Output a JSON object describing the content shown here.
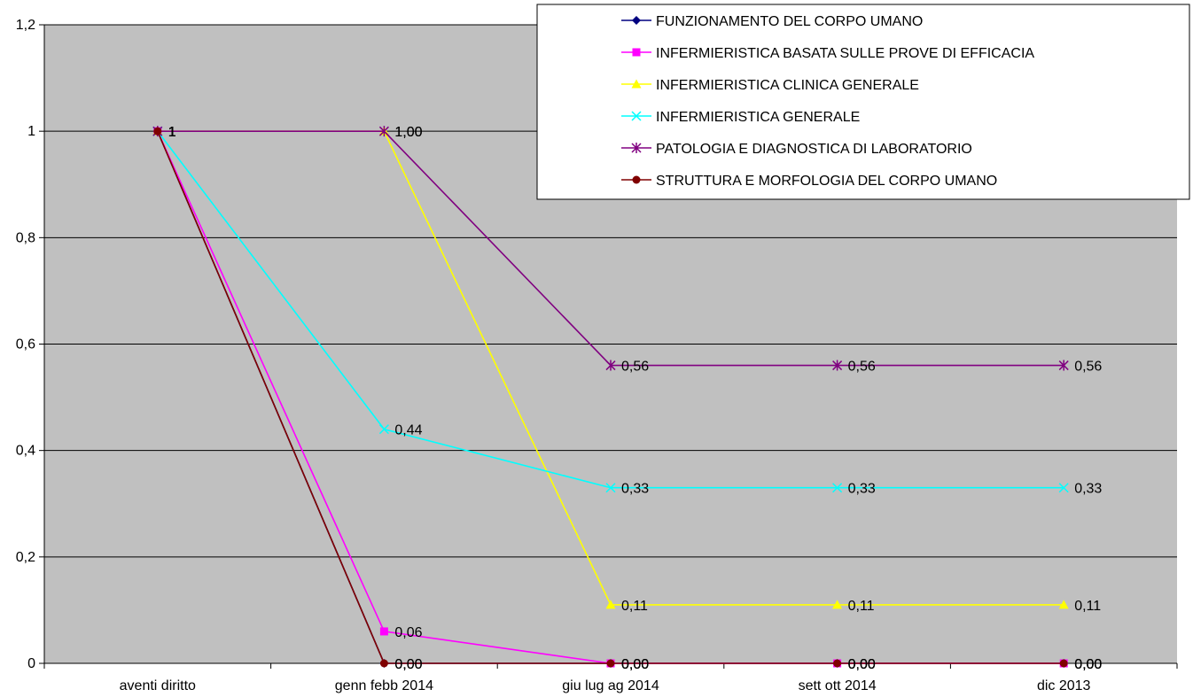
{
  "colors": {
    "plot_background": "#c0c0c0",
    "gridline": "#000000",
    "legend_background": "#ffffff"
  },
  "chart_data": {
    "type": "line",
    "title": "",
    "xlabel": "",
    "ylabel": "",
    "categories": [
      "aventi diritto",
      "genn febb 2014",
      "giu lug ag 2014",
      "sett ott 2014",
      "dic 2013"
    ],
    "ylim": [
      0,
      1.2
    ],
    "yticks": [
      0,
      0.2,
      0.4,
      0.6,
      0.8,
      1,
      1.2
    ],
    "ytick_labels": [
      "0",
      "0,2",
      "0,4",
      "0,6",
      "0,8",
      "1",
      "1,2"
    ],
    "grid": true,
    "legend_position": "top-right",
    "series": [
      {
        "name": "FUNZIONAMENTO DEL CORPO UMANO",
        "color": "#000080",
        "marker": "diamond",
        "values": [
          1,
          0,
          0,
          0,
          0
        ],
        "labels": [
          "1",
          "0,00",
          "0,00",
          "0,00",
          "0,00"
        ]
      },
      {
        "name": "INFERMIERISTICA BASATA SULLE PROVE DI EFFICACIA",
        "color": "#ff00ff",
        "marker": "square",
        "values": [
          1,
          0.06,
          0,
          0,
          0
        ],
        "labels": [
          "1",
          "0,06",
          "0,00",
          "0,00",
          "0,00"
        ]
      },
      {
        "name": "INFERMIERISTICA CLINICA GENERALE",
        "color": "#ffff00",
        "marker": "triangle",
        "values": [
          1,
          1,
          0.11,
          0.11,
          0.11
        ],
        "labels": [
          "1",
          "1,00",
          "0,11",
          "0,11",
          "0,11"
        ]
      },
      {
        "name": "INFERMIERISTICA GENERALE",
        "color": "#00ffff",
        "marker": "x",
        "values": [
          1,
          0.44,
          0.33,
          0.33,
          0.33
        ],
        "labels": [
          "1",
          "0,44",
          "0,33",
          "0,33",
          "0,33"
        ]
      },
      {
        "name": "PATOLOGIA E DIAGNOSTICA DI LABORATORIO",
        "color": "#800080",
        "marker": "star",
        "values": [
          1,
          1,
          0.56,
          0.56,
          0.56
        ],
        "labels": [
          "1",
          "1,00",
          "0,56",
          "0,56",
          "0,56"
        ]
      },
      {
        "name": "STRUTTURA E MORFOLOGIA DEL CORPO UMANO",
        "color": "#800000",
        "marker": "circle",
        "values": [
          1,
          0,
          0,
          0,
          0
        ],
        "labels": [
          "1",
          "0,00",
          "0,00",
          "0,00",
          "0,00"
        ]
      }
    ]
  }
}
